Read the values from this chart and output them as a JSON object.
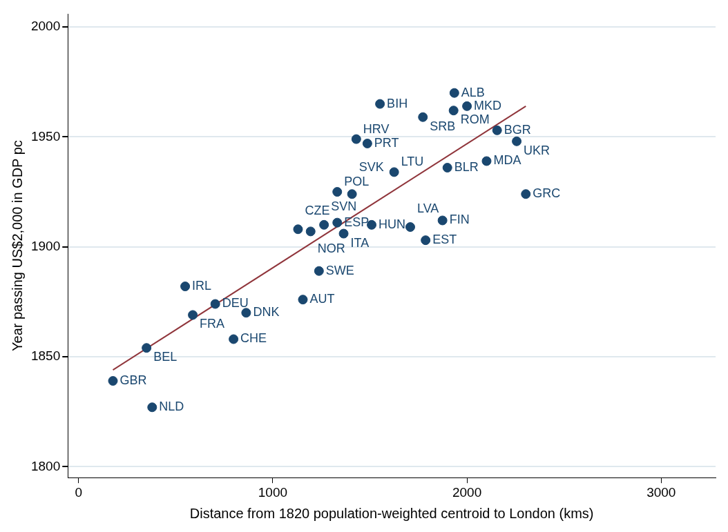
{
  "chart_data": {
    "type": "scatter",
    "xlabel": "Distance from 1820 population-weighted centroid to London (kms)",
    "ylabel": "Year passing US$2,000 in GDP pc",
    "xlim": [
      -55,
      3280
    ],
    "xticks": [
      0,
      1000,
      2000,
      3000
    ],
    "ylim": [
      1795,
      2006
    ],
    "yticks": [
      1800,
      1850,
      1900,
      1950,
      2000
    ],
    "grid": "y",
    "legend": false,
    "marker": "circle",
    "series": [
      {
        "color": "#1a476f",
        "x": [
          177,
          379,
          350,
          549,
          588,
          704,
          798,
          863,
          1155,
          1238,
          1130,
          1195,
          1264,
          1332,
          1365,
          1509,
          1708,
          1874,
          1787,
          1332,
          1408,
          1625,
          1430,
          1487,
          1552,
          1773,
          1935,
          1931,
          2000,
          2155,
          2256,
          1899,
          2101,
          2303
        ],
        "values": [
          1839,
          1827,
          1854,
          1882,
          1869,
          1874,
          1858,
          1870,
          1876,
          1889,
          1908,
          1907,
          1910,
          1911,
          1906,
          1910,
          1909,
          1912,
          1903,
          1925,
          1924,
          1934,
          1949,
          1947,
          1965,
          1959,
          1970,
          1962,
          1964,
          1953,
          1948,
          1936,
          1939,
          1924
        ]
      },
      {
        "type": "line",
        "color": "#90353b",
        "marker": "none",
        "line_style": "solid",
        "x": [
          177,
          2303
        ],
        "values": [
          1844,
          1964
        ]
      }
    ],
    "annotations": [
      {
        "text": "GBR",
        "x": 177,
        "y": 1839
      },
      {
        "text": "NLD",
        "x": 379,
        "y": 1827
      },
      {
        "text": "BEL",
        "x": 350,
        "y": 1854
      },
      {
        "text": "IRL",
        "x": 549,
        "y": 1882
      },
      {
        "text": "FRA",
        "x": 588,
        "y": 1869
      },
      {
        "text": "DEU",
        "x": 704,
        "y": 1874
      },
      {
        "text": "CHE",
        "x": 798,
        "y": 1858
      },
      {
        "text": "DNK",
        "x": 863,
        "y": 1870
      },
      {
        "text": "AUT",
        "x": 1155,
        "y": 1876
      },
      {
        "text": "SWE",
        "x": 1238,
        "y": 1889
      },
      {
        "text": "CZE",
        "x": 1130,
        "y": 1908
      },
      {
        "text": "NOR",
        "x": 1195,
        "y": 1907
      },
      {
        "text": "SVN",
        "x": 1264,
        "y": 1910
      },
      {
        "text": "ESP",
        "x": 1332,
        "y": 1911
      },
      {
        "text": "ITA",
        "x": 1365,
        "y": 1906
      },
      {
        "text": "HUN",
        "x": 1509,
        "y": 1910
      },
      {
        "text": "LVA",
        "x": 1708,
        "y": 1909
      },
      {
        "text": "FIN",
        "x": 1874,
        "y": 1912
      },
      {
        "text": "EST",
        "x": 1787,
        "y": 1903
      },
      {
        "text": "POL",
        "x": 1332,
        "y": 1925
      },
      {
        "text": "SVK",
        "x": 1408,
        "y": 1924
      },
      {
        "text": "LTU",
        "x": 1625,
        "y": 1934
      },
      {
        "text": "HRV",
        "x": 1430,
        "y": 1949
      },
      {
        "text": "PRT",
        "x": 1487,
        "y": 1947
      },
      {
        "text": "BIH",
        "x": 1552,
        "y": 1965
      },
      {
        "text": "SRB",
        "x": 1773,
        "y": 1959
      },
      {
        "text": "ALB",
        "x": 1935,
        "y": 1970
      },
      {
        "text": "ROM",
        "x": 1931,
        "y": 1962
      },
      {
        "text": "MKD",
        "x": 2000,
        "y": 1964
      },
      {
        "text": "BGR",
        "x": 2155,
        "y": 1953
      },
      {
        "text": "UKR",
        "x": 2256,
        "y": 1948
      },
      {
        "text": "BLR",
        "x": 1899,
        "y": 1936
      },
      {
        "text": "MDA",
        "x": 2101,
        "y": 1939
      },
      {
        "text": "GRC",
        "x": 2303,
        "y": 1924
      }
    ]
  }
}
